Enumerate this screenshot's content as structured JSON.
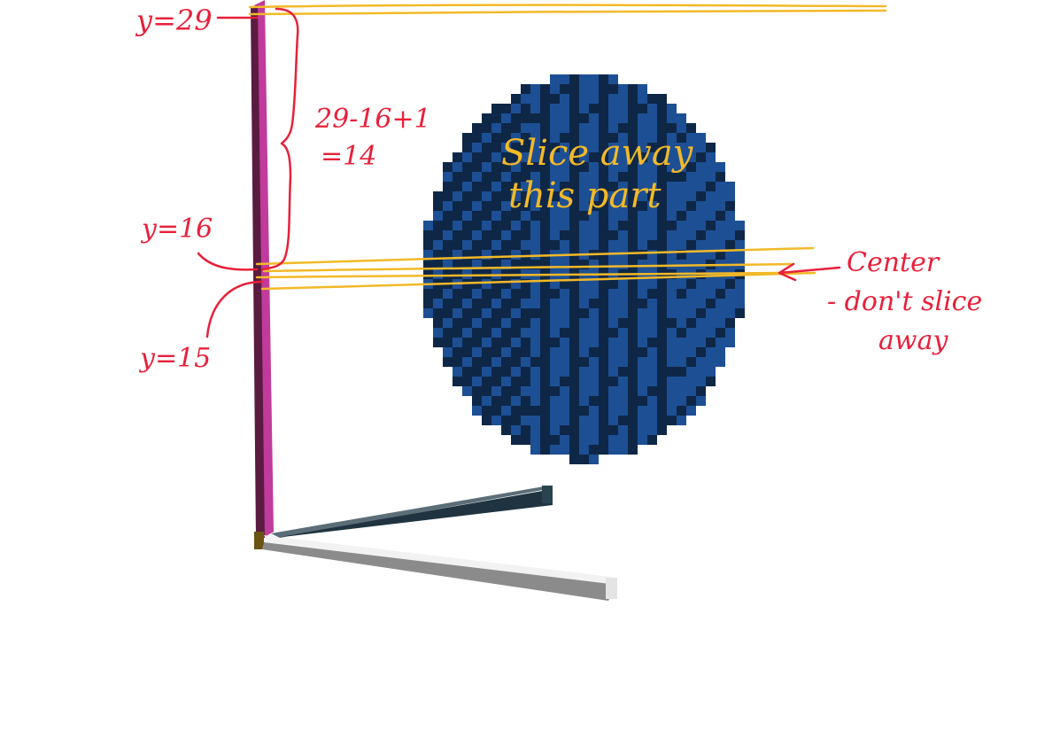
{
  "annotations": {
    "y_top": "y=29",
    "y_mid": "y=16",
    "y_low": "y=15",
    "formula_line1": "29-16+1",
    "formula_line2": "=14",
    "slice_line1": "Slice away",
    "slice_line2": "this part",
    "center_line1": "Center",
    "center_line2": "- don't slice",
    "center_line3": "away"
  },
  "colors": {
    "annotation_red": "#e8203a",
    "annotation_gold": "#f2b928",
    "sphere_light": "#1d4f94",
    "sphere_dark": "#0e2747",
    "y_axis": "#c03b9c",
    "x_axis": "#d8d8d8",
    "z_axis": "#1f3440"
  },
  "icons": [
    "voxel-sphere",
    "y-axis-bar",
    "x-axis-bar",
    "z-axis-bar",
    "left-brace",
    "arrow"
  ]
}
